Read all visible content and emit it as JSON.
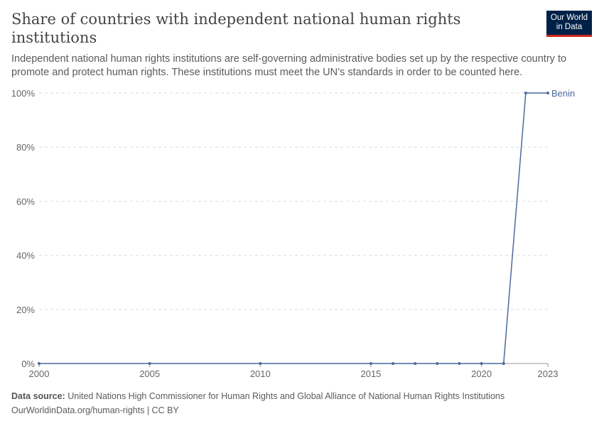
{
  "header": {
    "title": "Share of countries with independent national human rights institutions",
    "subtitle": "Independent national human rights institutions are self-governing administrative bodies set up by the respective country to promote and protect human rights. These institutions must meet the UN’s standards in order to be counted here.",
    "logo": "Our World in Data"
  },
  "footer": {
    "source_label": "Data source:",
    "source": "United Nations High Commissioner for Human Rights and Global Alliance of National Human Rights Institutions",
    "url": "OurWorldinData.org/human-rights | CC BY"
  },
  "chart_data": {
    "type": "line",
    "title": "Share of countries with independent national human rights institutions",
    "xlim": [
      2000,
      2023
    ],
    "ylim": [
      0,
      100
    ],
    "grid": true,
    "x_ticks": [
      2000,
      2005,
      2010,
      2015,
      2020,
      2023
    ],
    "y_ticks": [
      {
        "v": 0,
        "label": "0%"
      },
      {
        "v": 20,
        "label": "20%"
      },
      {
        "v": 40,
        "label": "40%"
      },
      {
        "v": 60,
        "label": "60%"
      },
      {
        "v": 80,
        "label": "80%"
      },
      {
        "v": 100,
        "label": "100%"
      }
    ],
    "series": [
      {
        "name": "Benin",
        "color": "#4c6a9c",
        "x": [
          2000,
          2005,
          2010,
          2015,
          2016,
          2017,
          2018,
          2019,
          2020,
          2021,
          2022,
          2023
        ],
        "y": [
          0,
          0,
          0,
          0,
          0,
          0,
          0,
          0,
          0,
          0,
          100,
          100
        ]
      }
    ]
  }
}
